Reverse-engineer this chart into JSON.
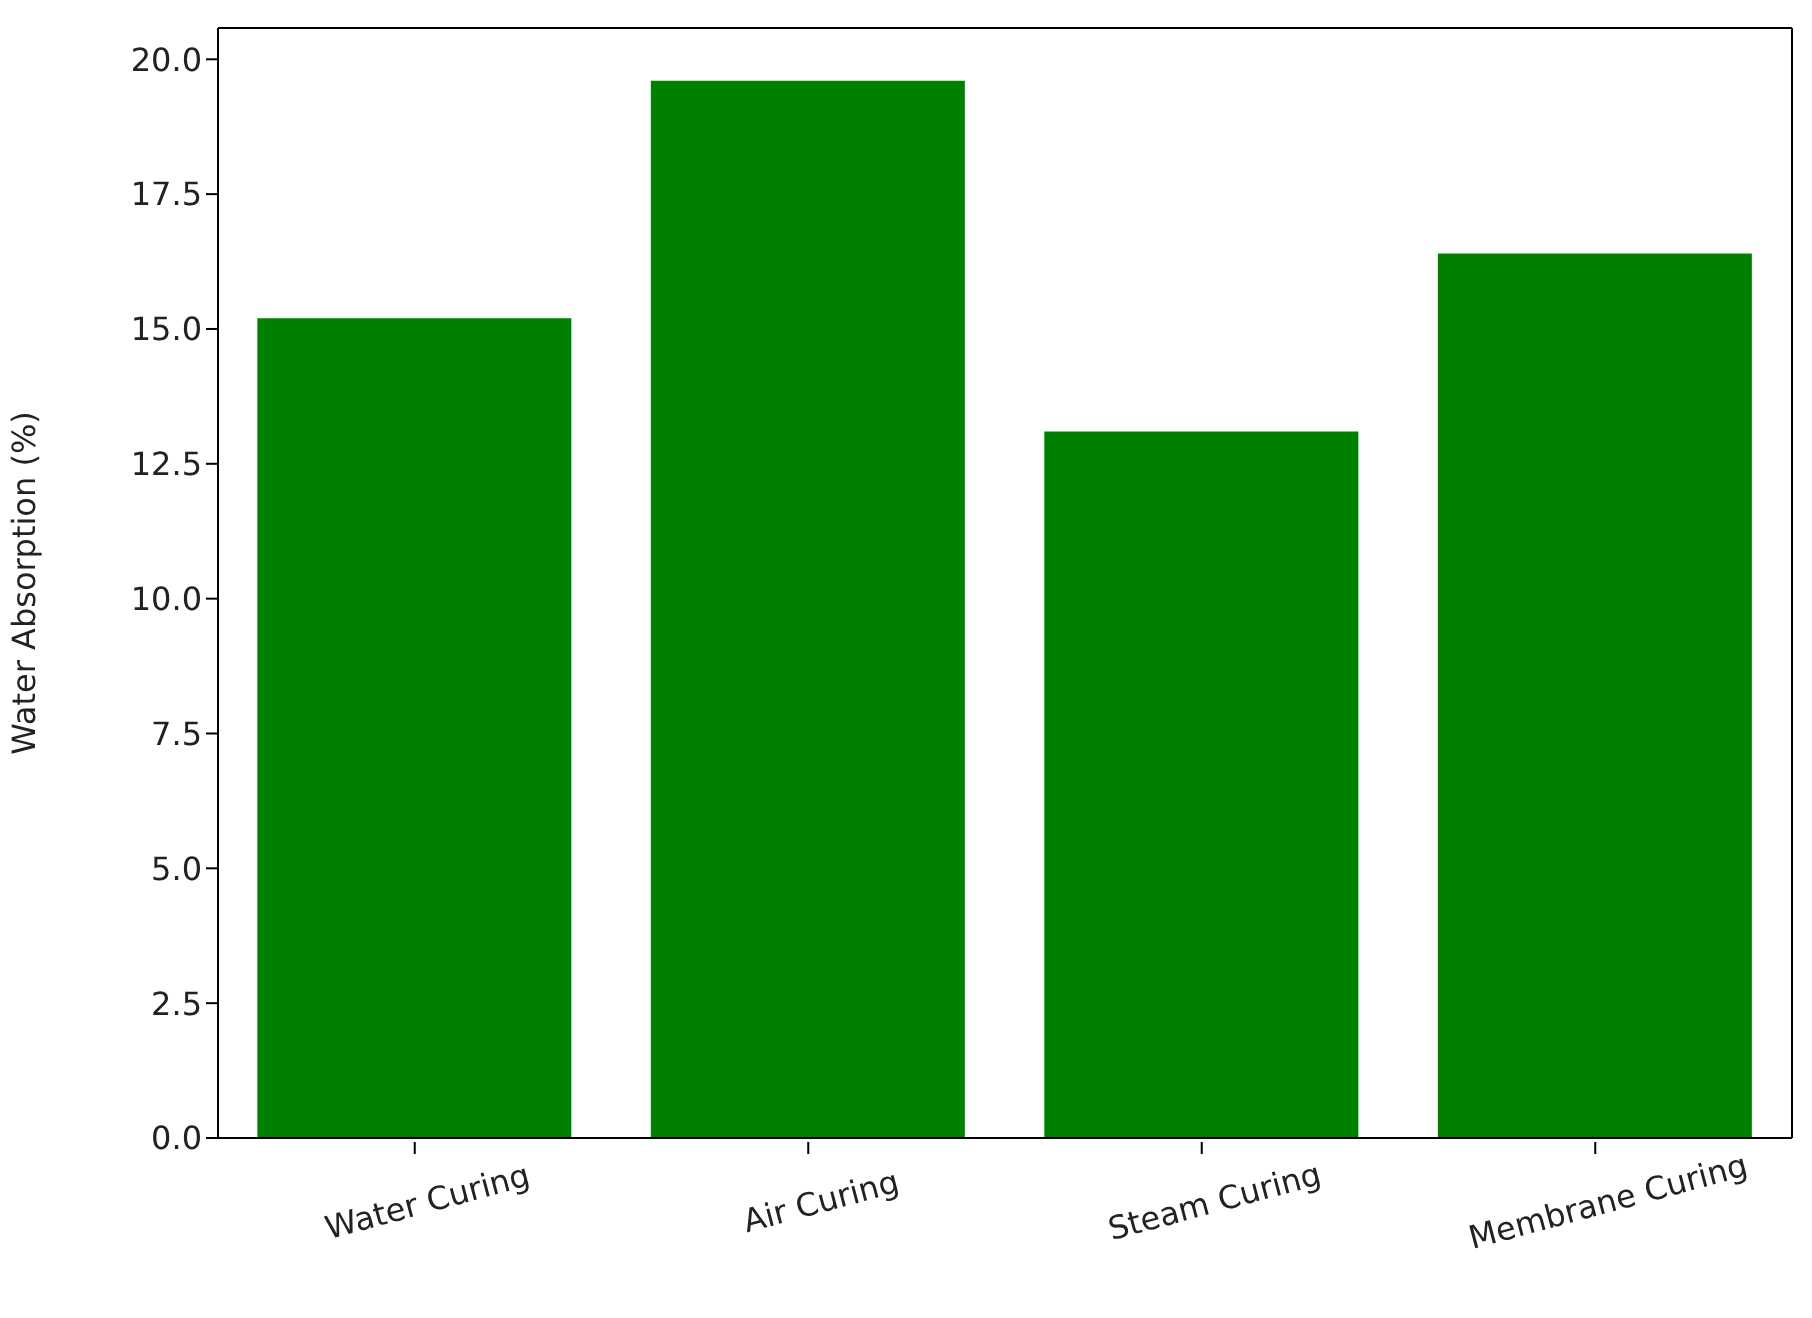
{
  "chart_data": {
    "type": "bar",
    "ylabel": "Water Absorption (%)",
    "categories": [
      "Water Curing",
      "Air Curing",
      "Steam Curing",
      "Membrane Curing"
    ],
    "values": [
      15.2,
      19.6,
      13.1,
      16.4
    ],
    "color": "#008000",
    "ylim": [
      0,
      20.58
    ],
    "yticks": [
      {
        "value": 0,
        "label": "0.0"
      },
      {
        "value": 2.5,
        "label": "2.5"
      },
      {
        "value": 5,
        "label": "5.0"
      },
      {
        "value": 7.5,
        "label": "7.5"
      },
      {
        "value": 10,
        "label": "10.0"
      },
      {
        "value": 12.5,
        "label": "12.5"
      },
      {
        "value": 15,
        "label": "15.0"
      },
      {
        "value": 17.5,
        "label": "17.5"
      },
      {
        "value": 20,
        "label": "20.0"
      }
    ],
    "grid": false,
    "legend": false
  }
}
